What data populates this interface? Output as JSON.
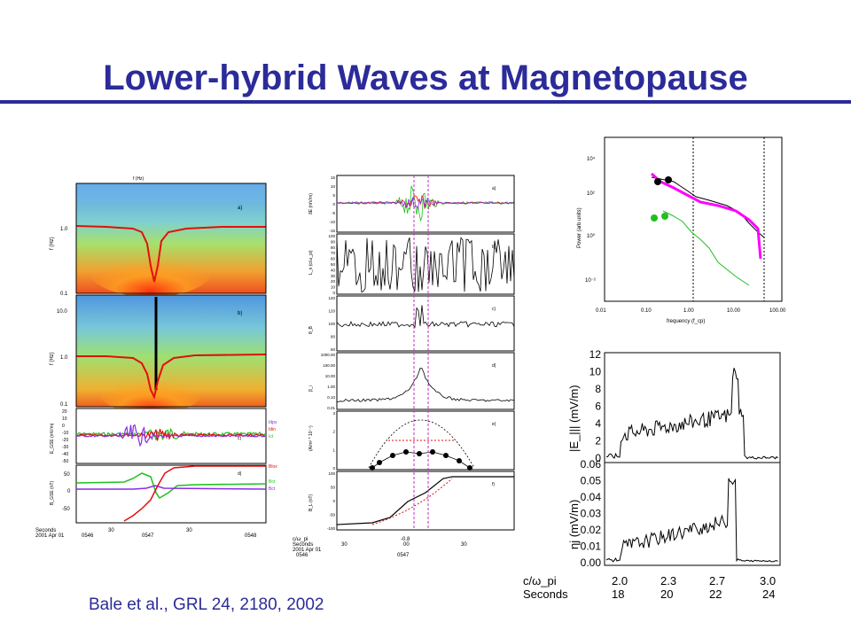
{
  "slide": {
    "title": "Lower-hybrid Waves at Magnetopause",
    "citation": "Bale et al., GRL 24, 2180, 2002",
    "title_color": "#2b2b99"
  },
  "left_panel": {
    "header": "f (Hz)",
    "panel_a": {
      "label": "a)",
      "ticks": [
        "1.0",
        "0.1"
      ],
      "ylabel": "f (Hz)"
    },
    "panel_b": {
      "label": "b)",
      "ticks": [
        "10.0",
        "1.0",
        "0.1"
      ],
      "ylabel": "f (Hz)"
    },
    "panel_c": {
      "label": "c)",
      "ticks": [
        "20",
        "10",
        "0",
        "-10",
        "-20",
        "-30",
        "-40",
        "-50"
      ],
      "ylabel": "E_GSE (mV/m)",
      "legend": [
        "Idpx",
        "Idin",
        "Ict"
      ]
    },
    "panel_d": {
      "label": "d)",
      "ticks": [
        "50",
        "0",
        "-50"
      ],
      "ylabel": "B_GSE (nT)",
      "legend": [
        "Blox",
        "Bct",
        "Bct"
      ]
    },
    "xaxis": {
      "row1": "Seconds",
      "row2": "2001 Apr 01",
      "time_ticks": [
        "0546",
        "0547",
        "0548"
      ],
      "sec_ticks": [
        "30",
        "30"
      ]
    },
    "colors": {
      "trace_red": "#e01010",
      "trace_green": "#20c020",
      "trace_purple": "#8a2be2"
    }
  },
  "middle_panel": {
    "panel_a": {
      "label": "a)",
      "ylabel": "δE (mV/m)",
      "ticks": [
        "15",
        "10",
        "5",
        "0",
        "-5",
        "-10",
        "-15"
      ]
    },
    "panel_b": {
      "label": "b)",
      "ylabel": "L_n (c/ω_pi)",
      "ticks": [
        "100",
        "90",
        "80",
        "70",
        "60",
        "50",
        "40",
        "30",
        "20",
        "10",
        "0"
      ]
    },
    "panel_c": {
      "label": "c)",
      "ylabel": "θ_B",
      "ticks": [
        "140",
        "120",
        "100",
        "80",
        "60"
      ]
    },
    "panel_d": {
      "label": "d)",
      "ylabel": "β_i",
      "ticks": [
        "1000.00",
        "100.00",
        "10.00",
        "1.00",
        "0.10",
        "0.01"
      ]
    },
    "panel_e": {
      "label": "e)",
      "ylabel": "(A/m² * 10⁻⁷)",
      "ticks": [
        "3",
        "2",
        "1",
        "0"
      ]
    },
    "panel_f": {
      "label": "f)",
      "ylabel": "B_L (nT)",
      "ticks": [
        "100",
        "50",
        "0",
        "-50",
        "-100"
      ]
    },
    "xaxis": {
      "row0": "c/ω_pi",
      "row1": "Seconds",
      "row2": "2001 Apr 01",
      "inner_tick": "-0.8",
      "sec_ticks": [
        "30",
        "00",
        "30"
      ],
      "time_ticks": [
        "0546",
        "0547"
      ]
    }
  },
  "spectrum_panel": {
    "ylabel": "Power (arb units)",
    "xlabel": "frequency (f_cp)",
    "yticks": [
      "10⁴",
      "10²",
      "10⁰",
      "10⁻²"
    ],
    "xticks": [
      "0.01",
      "0.10",
      "1.00",
      "10.00",
      "100.00"
    ]
  },
  "right_panels": {
    "upper": {
      "ylabel": "|E_||| (mV/m)",
      "ticks": [
        "12",
        "10",
        "8",
        "6",
        "4",
        "2",
        "0"
      ]
    },
    "lower": {
      "ylabel": "ηj (mV/m)",
      "ticks": [
        "0.06",
        "0.05",
        "0.04",
        "0.03",
        "0.02",
        "0.01",
        "0.00"
      ]
    },
    "xaxis": {
      "row1_label": "c/ω_pi",
      "row1": [
        "2.0",
        "2.3",
        "2.7",
        "3.0"
      ],
      "row2_label": "Seconds",
      "row2": [
        "18",
        "20",
        "22",
        "24"
      ]
    }
  }
}
